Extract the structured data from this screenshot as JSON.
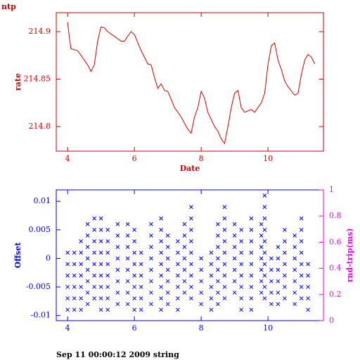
{
  "footer": "Sep 11 00:00:12 2009 string",
  "chart_data": [
    {
      "type": "line",
      "title": "ntp",
      "xlabel": "Date",
      "ylabel": "rate",
      "color": "#cc0000",
      "xlim": [
        3.66,
        11.66
      ],
      "ylim": [
        214.774,
        214.92
      ],
      "xticks": [
        4,
        6,
        8,
        10
      ],
      "yticks": [
        214.8,
        214.85,
        214.9
      ],
      "x": [
        4.0,
        4.05,
        4.1,
        4.3,
        4.4,
        4.6,
        4.7,
        4.8,
        4.9,
        5.0,
        5.1,
        5.2,
        5.4,
        5.6,
        5.7,
        5.9,
        6.0,
        6.2,
        6.4,
        6.5,
        6.6,
        6.7,
        6.8,
        6.9,
        7.0,
        7.2,
        7.4,
        7.6,
        7.7,
        7.8,
        7.9,
        8.0,
        8.1,
        8.2,
        8.4,
        8.5,
        8.6,
        8.7,
        8.8,
        8.9,
        9.0,
        9.1,
        9.2,
        9.3,
        9.5,
        9.6,
        9.8,
        9.9,
        10.0,
        10.1,
        10.2,
        10.3,
        10.4,
        10.5,
        10.6,
        10.8,
        10.9,
        11.0,
        11.1,
        11.2,
        11.3,
        11.4
      ],
      "values": [
        214.91,
        214.895,
        214.882,
        214.88,
        214.875,
        214.865,
        214.858,
        214.865,
        214.89,
        214.905,
        214.904,
        214.9,
        214.895,
        214.89,
        214.89,
        214.9,
        214.897,
        214.88,
        214.866,
        214.865,
        214.852,
        214.84,
        214.845,
        214.838,
        214.837,
        214.82,
        214.81,
        214.797,
        214.793,
        214.81,
        214.82,
        214.837,
        214.83,
        214.815,
        214.8,
        214.795,
        214.787,
        214.782,
        214.8,
        214.82,
        214.835,
        214.838,
        214.82,
        214.815,
        214.818,
        214.815,
        214.825,
        214.835,
        214.865,
        214.885,
        214.888,
        214.87,
        214.86,
        214.848,
        214.842,
        214.833,
        214.835,
        214.855,
        214.87,
        214.876,
        214.873,
        214.866
      ]
    },
    {
      "type": "scatter",
      "ylabel": "Offset",
      "y2label": "rnd-trip(ms)",
      "color": "#0000ee",
      "y2color": "#ee00ee",
      "xlim": [
        3.66,
        11.66
      ],
      "ylim": [
        -0.0109,
        0.012
      ],
      "y2lim": [
        0,
        1
      ],
      "xticks": [
        4,
        6,
        8,
        10
      ],
      "yticks": [
        -0.01,
        -0.005,
        0,
        0.005,
        0.01
      ],
      "y2ticks": [
        0,
        0.2,
        0.4,
        0.6,
        0.8,
        1
      ],
      "x": [
        4,
        4,
        4,
        4,
        4,
        4,
        4.2,
        4.2,
        4.2,
        4.2,
        4.2,
        4.2,
        4.4,
        4.4,
        4.4,
        4.4,
        4.4,
        4.4,
        4.4,
        4.6,
        4.6,
        4.6,
        4.6,
        4.6,
        4.6,
        4.6,
        4.6,
        4.8,
        4.8,
        4.8,
        4.8,
        4.8,
        4.8,
        4.8,
        4.8,
        5,
        5,
        5,
        5,
        5,
        5,
        5,
        5,
        5,
        5.2,
        5.2,
        5.2,
        5.2,
        5.2,
        5.2,
        5.2,
        5.2,
        5.5,
        5.5,
        5.5,
        5.5,
        5.5,
        5.5,
        5.5,
        5.5,
        5.8,
        5.8,
        5.8,
        5.8,
        5.8,
        5.8,
        5.8,
        5.8,
        6,
        6,
        6,
        6,
        6,
        6,
        6,
        6,
        6.2,
        6.2,
        6.2,
        6.2,
        6.2,
        6.2,
        6.5,
        6.5,
        6.5,
        6.5,
        6.5,
        6.5,
        6.5,
        6.5,
        6.8,
        6.8,
        6.8,
        6.8,
        6.8,
        6.8,
        6.8,
        6.8,
        6.8,
        7,
        7,
        7,
        7,
        7,
        7,
        7,
        7.3,
        7.3,
        7.3,
        7.3,
        7.3,
        7.3,
        7.3,
        7.5,
        7.5,
        7.5,
        7.5,
        7.5,
        7.5,
        7.5,
        7.7,
        7.7,
        7.7,
        7.7,
        7.7,
        7.7,
        7.7,
        7.7,
        7.7,
        8,
        8,
        8,
        8,
        8,
        8.3,
        8.3,
        8.3,
        8.3,
        8.3,
        8.3,
        8.5,
        8.5,
        8.5,
        8.5,
        8.5,
        8.5,
        8.5,
        8.5,
        8.7,
        8.7,
        8.7,
        8.7,
        8.7,
        8.7,
        8.7,
        8.7,
        8.7,
        9,
        9,
        9,
        9,
        9,
        9,
        9,
        9.2,
        9.2,
        9.2,
        9.2,
        9.2,
        9.2,
        9.2,
        9.2,
        9.5,
        9.5,
        9.5,
        9.5,
        9.5,
        9.5,
        9.5,
        9.5,
        9.5,
        9.8,
        9.8,
        9.8,
        9.8,
        9.8,
        9.8,
        9.8,
        9.9,
        9.9,
        9.9,
        9.9,
        9.9,
        9.9,
        9.9,
        9.9,
        9.9,
        9.9,
        10.1,
        10.1,
        10.1,
        10.1,
        10.1,
        10.3,
        10.3,
        10.3,
        10.3,
        10.3,
        10.3,
        10.5,
        10.5,
        10.5,
        10.5,
        10.5,
        10.5,
        10.5,
        10.8,
        10.8,
        10.8,
        10.8,
        10.8,
        10.8,
        10.8,
        11,
        11,
        11,
        11,
        11,
        11,
        11,
        11,
        11.2,
        11.2,
        11.2,
        11.2,
        11.2
      ],
      "values": [
        -0.009,
        -0.007,
        -0.005,
        -0.003,
        -0.001,
        0.001,
        -0.009,
        -0.007,
        -0.005,
        -0.003,
        -0.001,
        0.001,
        -0.009,
        -0.007,
        -0.005,
        -0.003,
        -0.001,
        0.001,
        0.003,
        -0.008,
        -0.006,
        -0.004,
        -0.002,
        0,
        0.002,
        0.004,
        0.006,
        -0.007,
        -0.005,
        -0.003,
        -0.001,
        0.001,
        0.003,
        0.005,
        0.007,
        -0.009,
        -0.007,
        -0.005,
        -0.003,
        -0.001,
        0.001,
        0.003,
        0.005,
        0.007,
        -0.009,
        -0.007,
        -0.005,
        -0.003,
        -0.001,
        0.001,
        0.003,
        0.005,
        -0.008,
        -0.006,
        -0.004,
        -0.002,
        0,
        0.002,
        0.004,
        0.006,
        -0.008,
        -0.006,
        -0.004,
        -0.002,
        0,
        0.002,
        0.004,
        0.006,
        -0.009,
        -0.007,
        -0.005,
        -0.003,
        -0.001,
        0.001,
        0.003,
        0.005,
        -0.009,
        -0.007,
        -0.005,
        -0.003,
        -0.001,
        0.001,
        -0.008,
        -0.006,
        -0.004,
        -0.002,
        0,
        0.002,
        0.004,
        0.006,
        -0.009,
        -0.007,
        -0.005,
        -0.003,
        -0.001,
        0.001,
        0.003,
        0.005,
        0.007,
        -0.008,
        -0.006,
        -0.004,
        -0.002,
        0,
        0.002,
        0.004,
        -0.009,
        -0.007,
        -0.005,
        -0.003,
        -0.001,
        0.001,
        0.003,
        -0.006,
        -0.004,
        -0.002,
        0,
        0.002,
        0.004,
        0.006,
        -0.007,
        -0.005,
        -0.003,
        -0.001,
        0.001,
        0.003,
        0.005,
        0.007,
        0.009,
        -0.008,
        -0.006,
        -0.004,
        -0.002,
        0,
        -0.009,
        -0.007,
        -0.005,
        -0.003,
        -0.001,
        0.001,
        -0.008,
        -0.006,
        -0.004,
        -0.002,
        0,
        0.002,
        0.004,
        0.006,
        -0.007,
        -0.005,
        -0.003,
        -0.001,
        0.001,
        0.003,
        0.005,
        0.007,
        0.009,
        -0.006,
        -0.004,
        -0.002,
        0,
        0.002,
        0.004,
        0.006,
        -0.009,
        -0.007,
        -0.005,
        -0.003,
        -0.001,
        0.001,
        0.003,
        0.005,
        -0.009,
        -0.007,
        -0.005,
        -0.003,
        -0.001,
        0.001,
        0.003,
        0.005,
        0.007,
        -0.006,
        -0.004,
        -0.002,
        0,
        0.002,
        0.004,
        0.006,
        -0.007,
        -0.005,
        -0.003,
        -0.001,
        0.001,
        0.003,
        0.005,
        0.007,
        0.009,
        0.011,
        -0.008,
        -0.006,
        -0.004,
        -0.002,
        0,
        -0.008,
        -0.006,
        -0.004,
        -0.002,
        0,
        0.002,
        -0.007,
        -0.005,
        -0.003,
        -0.001,
        0.001,
        0.003,
        0.005,
        -0.008,
        -0.006,
        -0.004,
        -0.002,
        0,
        0.002,
        0.004,
        -0.007,
        -0.005,
        -0.003,
        -0.001,
        0.001,
        0.003,
        0.005,
        0.007,
        -0.009,
        -0.007,
        -0.005,
        -0.003,
        -0.001
      ]
    }
  ]
}
